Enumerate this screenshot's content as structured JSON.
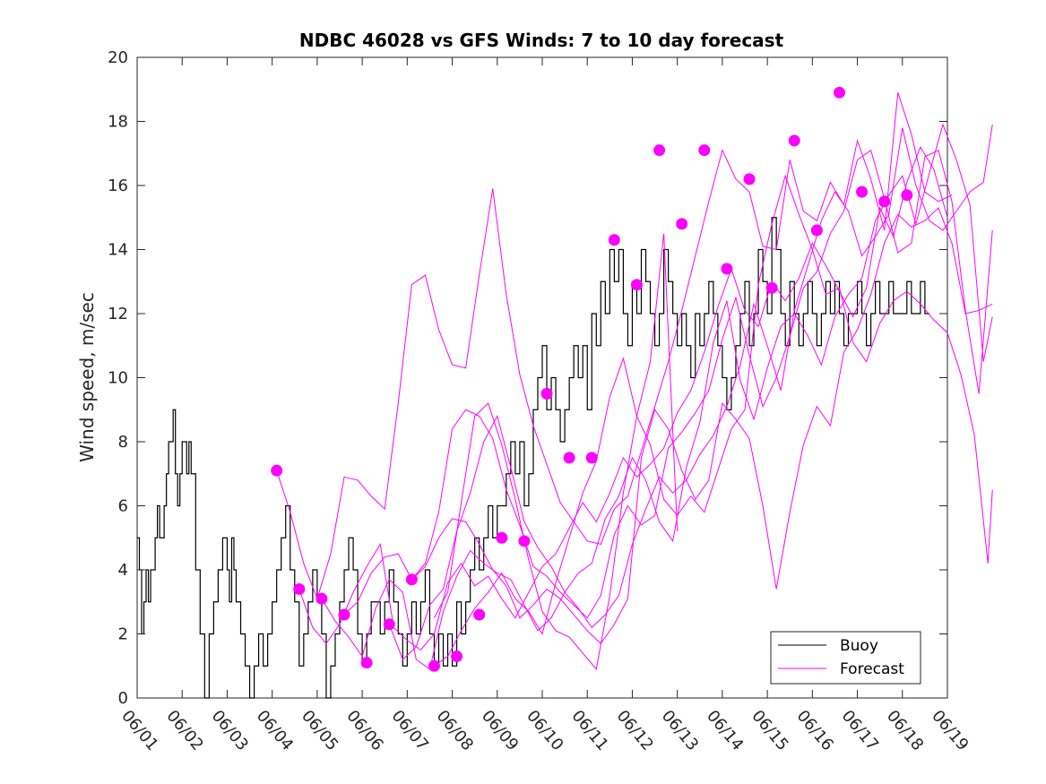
{
  "chart_data": {
    "type": "line",
    "title": "NDBC 46028 vs GFS Winds: 7 to 10 day forecast",
    "xlabel": "",
    "ylabel": "Wind speed, m/sec",
    "xlim": [
      "06/01",
      "06/19"
    ],
    "ylim": [
      0,
      20
    ],
    "x_ticks": [
      "06/01",
      "06/02",
      "06/03",
      "06/04",
      "06/05",
      "06/06",
      "06/07",
      "06/08",
      "06/09",
      "06/10",
      "06/11",
      "06/12",
      "06/13",
      "06/14",
      "06/15",
      "06/16",
      "06/17",
      "06/18",
      "06/19"
    ],
    "y_ticks": [
      0,
      2,
      4,
      6,
      8,
      10,
      12,
      14,
      16,
      18,
      20
    ],
    "grid": false,
    "legend_placement": "bottom-right",
    "legend": [
      "Buoy",
      "Forecast"
    ],
    "colors": {
      "buoy": "#000000",
      "forecast": "#ff00ff"
    },
    "buoy": {
      "name": "Buoy",
      "day": [
        0.0,
        0.05,
        0.1,
        0.15,
        0.2,
        0.25,
        0.3,
        0.35,
        0.4,
        0.45,
        0.5,
        0.55,
        0.6,
        0.65,
        0.7,
        0.75,
        0.8,
        0.85,
        0.9,
        0.95,
        1.0,
        1.05,
        1.1,
        1.15,
        1.2,
        1.3,
        1.4,
        1.5,
        1.6,
        1.7,
        1.8,
        1.9,
        2.0,
        2.05,
        2.1,
        2.15,
        2.2,
        2.3,
        2.4,
        2.5,
        2.6,
        2.7,
        2.8,
        2.9,
        3.0,
        3.1,
        3.2,
        3.3,
        3.4,
        3.5,
        3.6,
        3.7,
        3.8,
        3.9,
        4.0,
        4.1,
        4.2,
        4.3,
        4.4,
        4.5,
        4.6,
        4.7,
        4.8,
        4.9,
        5.0,
        5.1,
        5.2,
        5.3,
        5.4,
        5.5,
        5.6,
        5.7,
        5.8,
        5.9,
        6.0,
        6.1,
        6.2,
        6.3,
        6.4,
        6.5,
        6.6,
        6.7,
        6.8,
        6.9,
        7.0,
        7.1,
        7.2,
        7.3,
        7.4,
        7.5,
        7.6,
        7.7,
        7.8,
        7.9,
        8.0,
        8.1,
        8.2,
        8.3,
        8.4,
        8.5,
        8.6,
        8.7,
        8.8,
        8.9,
        9.0,
        9.1,
        9.2,
        9.3,
        9.4,
        9.5,
        9.6,
        9.7,
        9.8,
        9.9,
        10.0,
        10.1,
        10.2,
        10.3,
        10.4,
        10.5,
        10.6,
        10.7,
        10.8,
        10.9,
        11.0,
        11.1,
        11.2,
        11.3,
        11.4,
        11.5,
        11.6,
        11.7,
        11.8,
        11.9,
        12.0,
        12.1,
        12.2,
        12.3,
        12.4,
        12.5,
        12.6,
        12.7,
        12.8,
        12.9,
        13.0,
        13.1,
        13.2,
        13.3,
        13.4,
        13.5,
        13.6,
        13.7,
        13.8,
        13.9,
        14.0,
        14.1,
        14.2,
        14.3,
        14.4,
        14.5,
        14.6,
        14.7,
        14.8,
        14.9,
        15.0,
        15.1,
        15.2,
        15.3,
        15.4,
        15.5,
        15.6,
        15.7,
        15.8,
        15.9,
        16.0,
        16.1,
        16.2,
        16.3,
        16.4,
        16.5,
        16.6,
        16.7,
        16.8,
        16.9,
        17.0,
        17.1,
        17.2,
        17.3,
        17.4,
        17.5,
        17.6,
        17.7,
        17.8,
        17.9,
        18.0,
        18.1,
        18.2,
        18.3
      ],
      "values": [
        5,
        4,
        2,
        3,
        4,
        3,
        4,
        4,
        5,
        6,
        5,
        5,
        6,
        7,
        8,
        8,
        9,
        7,
        6,
        7,
        8,
        8,
        7,
        8,
        7,
        4,
        2,
        0,
        2,
        3,
        4,
        5,
        4,
        3,
        5,
        4,
        3,
        2,
        1,
        0,
        1,
        2,
        1,
        2,
        3,
        4,
        5,
        6,
        4,
        3,
        1,
        2,
        3,
        4,
        3,
        2,
        0,
        1,
        2,
        3,
        4,
        5,
        4,
        2,
        1,
        2,
        3,
        3,
        2,
        3,
        4,
        3,
        2,
        1,
        2,
        3,
        2,
        3,
        4,
        2,
        1,
        2,
        1,
        2,
        1,
        3,
        2,
        3,
        4,
        5,
        4,
        5,
        6,
        5,
        6,
        6,
        7,
        8,
        7,
        8,
        6,
        7,
        9,
        10,
        11,
        9,
        10,
        9,
        8,
        9,
        10,
        11,
        10,
        11,
        9,
        12,
        11,
        13,
        12,
        14,
        13,
        14,
        12,
        11,
        13,
        12,
        14,
        13,
        12,
        11,
        12,
        14,
        13,
        12,
        11,
        12,
        11,
        10,
        12,
        11,
        12,
        13,
        12,
        11,
        10,
        9,
        10,
        11,
        12,
        13,
        11,
        12,
        14,
        13,
        12,
        15,
        14,
        12,
        11,
        13,
        12,
        11,
        12,
        13,
        12,
        11,
        12,
        13,
        12,
        13,
        12,
        11,
        12,
        12,
        13,
        12,
        11,
        12,
        13,
        12,
        12,
        13,
        12,
        12,
        12,
        13,
        12,
        12,
        13,
        12
      ]
    },
    "forecast_runs": [
      {
        "day": [
          3.1,
          3.4,
          3.7,
          4.0,
          4.3,
          4.6,
          4.9,
          5.2,
          5.5,
          5.8,
          6.1,
          6.4,
          6.7,
          7.0,
          7.3,
          7.6,
          7.9,
          8.2,
          8.5,
          8.8,
          9.1,
          9.4,
          9.7,
          10.0,
          10.3,
          10.6,
          10.9,
          11.2,
          11.5,
          11.8,
          12.1,
          12.4,
          12.7,
          13.0,
          13.3,
          13.6,
          13.9,
          14.2,
          14.5,
          14.8,
          15.1,
          15.4,
          15.7,
          16.0,
          16.3,
          16.6,
          16.9,
          17.2,
          17.5,
          17.8,
          18.1
        ],
        "values": [
          7.1,
          5.8,
          4.2,
          3.1,
          4.5,
          6.9,
          6.8,
          6.3,
          5.9,
          9.2,
          12.9,
          13.2,
          11.5,
          10.4,
          10.3,
          13.2,
          15.9,
          12.6,
          10.1,
          8.5,
          7.3,
          6.1,
          5.5,
          4.9,
          4.8,
          5.9,
          6.3,
          7.7,
          9.1,
          10.5,
          12.1,
          13.8,
          15.5,
          17.1,
          16.2,
          15.8,
          14.1,
          14.0,
          16.8,
          15.2,
          14.9,
          16.1,
          15.4,
          17.4,
          16.2,
          14.6,
          18.9,
          17.6,
          15.8,
          15.5,
          15.7
        ]
      },
      {
        "day": [
          3.6,
          3.9,
          4.2,
          4.5,
          4.8,
          5.1,
          5.4,
          5.7,
          6.0,
          6.3,
          6.6,
          6.9,
          7.2,
          7.5,
          7.8,
          8.1,
          8.4,
          8.7,
          9.0,
          9.3,
          9.6,
          9.9,
          10.2,
          10.5,
          10.8,
          11.1,
          11.4,
          11.7,
          12.0,
          12.3,
          12.6,
          12.9,
          13.2,
          13.5,
          13.8,
          14.1,
          14.4,
          14.7,
          15.0,
          15.3,
          15.6,
          15.9,
          16.2,
          16.5,
          16.8,
          17.1,
          17.4,
          17.7,
          18.0
        ],
        "values": [
          3.4,
          2.2,
          1.7,
          2.3,
          3.3,
          4.1,
          4.8,
          2.2,
          1.8,
          1.5,
          2.0,
          3.6,
          4.2,
          3.5,
          3.8,
          3.1,
          2.5,
          3.3,
          4.1,
          4.5,
          5.3,
          6.1,
          5.5,
          6.4,
          7.5,
          6.9,
          7.3,
          7.8,
          8.9,
          9.6,
          10.8,
          12.2,
          13.4,
          12.1,
          11.6,
          13.0,
          12.4,
          13.1,
          14.2,
          13.5,
          12.7,
          11.9,
          12.8,
          15.3,
          14.4,
          16.1,
          17.2,
          16.5,
          15.0
        ]
      },
      {
        "day": [
          4.1,
          4.4,
          4.7,
          5.0,
          5.3,
          5.6,
          5.9,
          6.2,
          6.5,
          6.8,
          7.1,
          7.4,
          7.7,
          8.0,
          8.3,
          8.6,
          8.9,
          9.2,
          9.5,
          9.8,
          10.1,
          10.4,
          10.7,
          11.0,
          11.3,
          11.6,
          11.9,
          12.2,
          12.5,
          12.8,
          13.1,
          13.4,
          13.7,
          14.0,
          14.3,
          14.6,
          14.9,
          15.2,
          15.5,
          15.8,
          16.1,
          16.4,
          16.7,
          17.0,
          17.3,
          17.6,
          17.9,
          18.2,
          18.5,
          18.8,
          19.0
        ],
        "values": [
          3.1,
          2.4,
          1.9,
          1.3,
          2.8,
          3.7,
          3.3,
          1.2,
          0.9,
          2.7,
          3.8,
          4.6,
          4.2,
          3.9,
          3.7,
          2.9,
          2.1,
          2.5,
          3.3,
          3.9,
          4.2,
          5.6,
          6.3,
          7.5,
          6.8,
          5.5,
          4.9,
          7.2,
          8.6,
          11.1,
          12.4,
          9.9,
          8.7,
          10.3,
          11.6,
          12.0,
          11.3,
          10.4,
          11.9,
          12.6,
          13.1,
          14.9,
          15.7,
          16.3,
          14.8,
          16.4,
          17.9,
          16.8,
          15.4,
          10.5,
          11.9
        ]
      },
      {
        "day": [
          4.6,
          4.9,
          5.2,
          5.5,
          5.8,
          6.1,
          6.4,
          6.7,
          7.0,
          7.3,
          7.6,
          7.9,
          8.2,
          8.5,
          8.8,
          9.1,
          9.4,
          9.7,
          10.0,
          10.3,
          10.6,
          10.9,
          11.2,
          11.5,
          11.8,
          12.1,
          12.4,
          12.7,
          13.0,
          13.3,
          13.6,
          13.9,
          14.2,
          14.5,
          14.8,
          15.1,
          15.4,
          15.7,
          16.0,
          16.3,
          16.6,
          16.9,
          17.2,
          17.5,
          17.8,
          18.1,
          18.4,
          18.7,
          19.0
        ],
        "values": [
          2.6,
          3.0,
          3.9,
          4.4,
          4.5,
          3.7,
          4.2,
          5.8,
          8.4,
          9.0,
          8.8,
          8.1,
          6.5,
          5.4,
          4.1,
          3.8,
          3.3,
          2.9,
          2.5,
          3.2,
          5.1,
          6.0,
          5.4,
          5.7,
          7.8,
          8.3,
          8.9,
          9.6,
          11.2,
          12.5,
          10.7,
          9.1,
          10.0,
          11.3,
          12.8,
          13.3,
          14.5,
          15.2,
          16.8,
          17.1,
          15.6,
          13.9,
          14.2,
          16.9,
          17.1,
          15.5,
          12.1,
          9.5,
          14.6
        ]
      },
      {
        "day": [
          5.6,
          5.9,
          6.2,
          6.5,
          6.8,
          7.1,
          7.4,
          7.7,
          8.0,
          8.3,
          8.6,
          8.9,
          9.2,
          9.5,
          9.8,
          10.1,
          10.4,
          10.7,
          11.0,
          11.3,
          11.6,
          11.9,
          12.2,
          12.5,
          12.8,
          13.1,
          13.4,
          13.7,
          14.0,
          14.3,
          14.6,
          14.9,
          15.2,
          15.5,
          15.8,
          16.1,
          16.4,
          16.7,
          17.0,
          17.3,
          17.6,
          17.9,
          18.2,
          18.5,
          18.8,
          19.0
        ],
        "values": [
          2.3,
          1.2,
          1.6,
          2.9,
          3.4,
          5.2,
          6.4,
          8.0,
          8.8,
          7.2,
          5.5,
          4.7,
          4.1,
          3.3,
          2.8,
          2.2,
          2.6,
          3.2,
          4.8,
          5.9,
          6.9,
          6.4,
          6.8,
          7.6,
          8.2,
          9.1,
          10.4,
          12.3,
          11.0,
          9.6,
          12.1,
          13.5,
          14.9,
          15.8,
          15.2,
          13.8,
          14.4,
          15.1,
          17.8,
          16.0,
          14.9,
          14.6,
          15.2,
          15.8,
          16.1,
          17.9
        ]
      },
      {
        "day": [
          6.1,
          6.4,
          6.7,
          7.0,
          7.3,
          7.6,
          7.9,
          8.2,
          8.5,
          8.8,
          9.1,
          9.4,
          9.7,
          10.0,
          10.3,
          10.6,
          10.9,
          11.2,
          11.5,
          11.8,
          12.1,
          12.4,
          12.7,
          13.0,
          13.3,
          13.6,
          13.9,
          14.2,
          14.5,
          14.8,
          15.1,
          15.4,
          15.7,
          16.0,
          16.3,
          16.6,
          16.9,
          17.2,
          17.5,
          17.8,
          18.1,
          18.4,
          18.7,
          19.0
        ],
        "values": [
          3.7,
          4.1,
          5.0,
          5.6,
          5.5,
          4.8,
          4.0,
          3.5,
          2.5,
          2.9,
          3.4,
          3.1,
          2.6,
          2.1,
          1.7,
          2.3,
          3.1,
          7.5,
          9.0,
          8.4,
          7.1,
          6.2,
          6.8,
          9.2,
          8.7,
          8.1,
          6.0,
          3.4,
          5.8,
          7.9,
          9.1,
          8.5,
          10.8,
          11.5,
          12.6,
          14.2,
          15.1,
          14.7,
          14.9,
          15.3,
          14.2,
          12.0,
          12.1,
          12.3
        ]
      },
      {
        "day": [
          6.6,
          6.9,
          7.2,
          7.5,
          7.8,
          8.1,
          8.4,
          8.7,
          9.0,
          9.3,
          9.6,
          9.9,
          10.2,
          10.5,
          10.8,
          11.1,
          11.4,
          11.7,
          12.0,
          12.3,
          12.6,
          12.9,
          13.2,
          13.5,
          13.8,
          14.1,
          14.4,
          14.7,
          15.0,
          15.3,
          15.6,
          15.9,
          16.2,
          16.5,
          16.8,
          17.1,
          17.4,
          17.7,
          18.0,
          18.3,
          18.6,
          18.9,
          19.0
        ],
        "values": [
          1.0,
          1.3,
          2.1,
          2.8,
          3.3,
          3.9,
          3.1,
          2.7,
          2.0,
          3.6,
          5.0,
          6.4,
          7.4,
          9.4,
          10.6,
          8.8,
          7.9,
          6.2,
          5.7,
          6.3,
          5.8,
          7.1,
          8.4,
          9.0,
          12.9,
          14.8,
          16.3,
          15.1,
          14.0,
          12.6,
          12.8,
          11.1,
          10.5,
          11.7,
          12.4,
          12.7,
          12.3,
          11.8,
          11.4,
          10.1,
          8.2,
          4.2,
          6.5
        ]
      },
      {
        "day": [
          6.6,
          6.9,
          7.2,
          7.5,
          7.8,
          8.1,
          8.4,
          8.7,
          9.0,
          9.3,
          9.6,
          9.9,
          10.2,
          10.5,
          10.8,
          11.1,
          11.4,
          11.7,
          12.0
        ],
        "values": [
          2.5,
          3.3,
          6.1,
          8.8,
          9.2,
          7.9,
          6.2,
          4.3,
          2.7,
          2.1,
          1.9,
          1.4,
          0.9,
          3.2,
          6.4,
          8.8,
          10.5,
          14.5,
          5.2
        ]
      }
    ],
    "forecast_markers": {
      "day": [
        3.1,
        3.6,
        4.1,
        4.6,
        5.1,
        5.6,
        6.1,
        6.6,
        7.1,
        7.6,
        8.1,
        8.6,
        9.1,
        9.6,
        10.1,
        10.6,
        11.1,
        11.6,
        12.1,
        12.6,
        13.1,
        13.6,
        14.1,
        14.6,
        15.1,
        15.6,
        16.1,
        16.6,
        17.1,
        17.6,
        18.1
      ],
      "values": [
        7.1,
        3.4,
        3.1,
        2.6,
        1.1,
        2.3,
        3.7,
        1.0,
        1.3,
        2.6,
        5.0,
        4.9,
        9.5,
        7.5,
        7.5,
        14.3,
        12.9,
        17.1,
        14.8,
        17.1,
        13.4,
        16.2,
        12.8,
        17.4,
        14.6,
        18.9,
        15.8,
        15.5,
        15.7,
        null,
        null
      ]
    }
  }
}
